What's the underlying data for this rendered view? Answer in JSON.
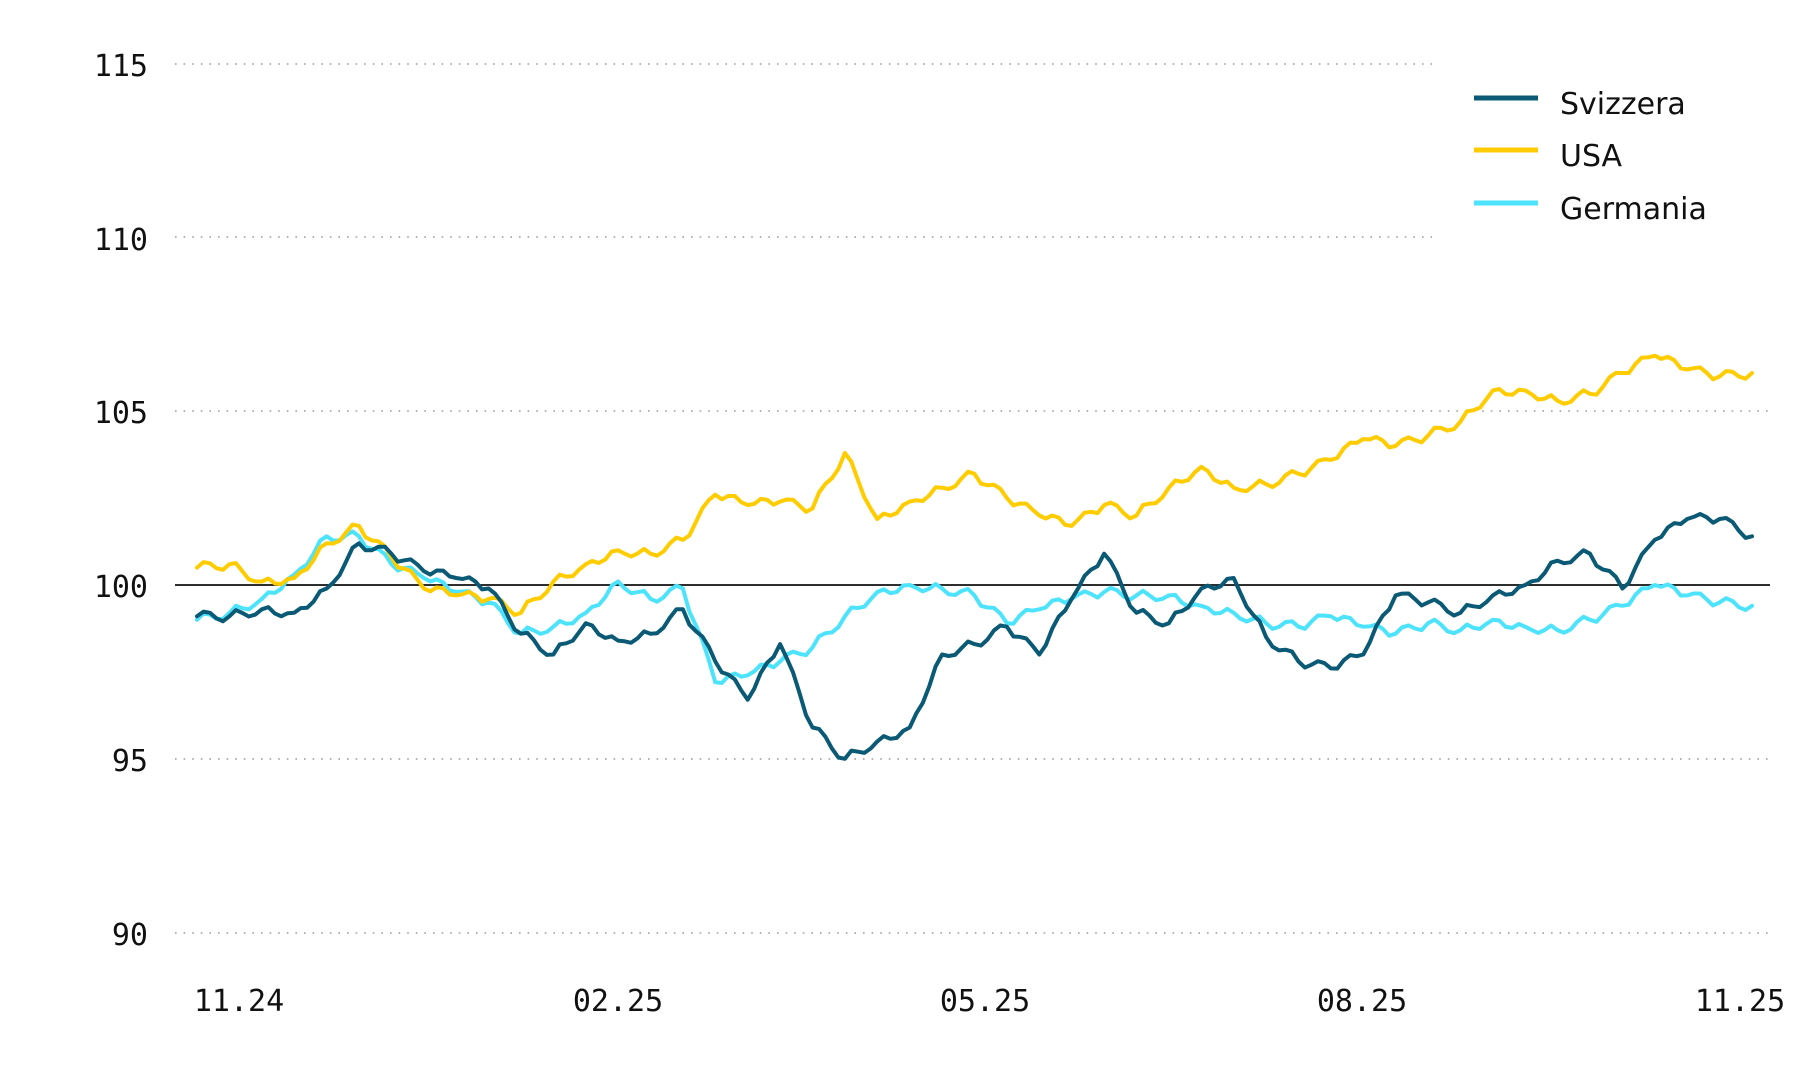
{
  "chart_data": {
    "type": "line",
    "title": "",
    "xlabel": "",
    "ylabel": "",
    "ylim": [
      90,
      115
    ],
    "yticks": [
      115,
      110,
      105,
      100,
      95,
      90
    ],
    "xtick_labels": [
      "11.24",
      "02.25",
      "05.25",
      "08.25",
      "11.25"
    ],
    "grid": "horizontal dotted",
    "reference_line": 100,
    "legend_position": "top-right",
    "x": [
      "11.24",
      "",
      "",
      "",
      "12.24",
      "",
      "",
      "",
      "01.25",
      "",
      "",
      "",
      "02.25",
      "",
      "",
      "",
      "03.25",
      "",
      "",
      "",
      "04.25",
      "",
      "",
      "",
      "05.25",
      "",
      "",
      "",
      "06.25",
      "",
      "",
      "",
      "07.25",
      "",
      "",
      "",
      "08.25",
      "",
      "",
      "",
      "09.25",
      "",
      "",
      "",
      "10.25",
      "",
      "",
      "",
      "11.25"
    ],
    "series": [
      {
        "name": "Svizzera",
        "color": "#0B5A75",
        "values": [
          99.1,
          99.1,
          99.3,
          99.2,
          99.9,
          101.2,
          100.9,
          100.4,
          100.2,
          99.9,
          98.6,
          98.0,
          98.9,
          98.4,
          98.6,
          99.3,
          97.8,
          96.7,
          98.3,
          95.9,
          95.0,
          95.5,
          95.9,
          98.0,
          98.3,
          98.8,
          98.0,
          99.6,
          100.9,
          99.2,
          98.9,
          99.9,
          100.2,
          98.5,
          97.8,
          97.6,
          98.0,
          99.7,
          99.5,
          99.2,
          99.7,
          100.0,
          100.7,
          100.9,
          99.9,
          101.3,
          101.9,
          101.9,
          101.4
        ]
      },
      {
        "name": "USA",
        "color": "#FFCC00",
        "values": [
          100.5,
          100.6,
          100.1,
          100.2,
          101.2,
          101.7,
          100.8,
          99.9,
          99.7,
          99.6,
          99.2,
          100.1,
          100.6,
          101.0,
          100.9,
          101.3,
          102.6,
          102.3,
          102.4,
          102.2,
          103.8,
          101.9,
          102.4,
          102.8,
          103.2,
          102.5,
          102.0,
          101.7,
          102.3,
          102.0,
          102.8,
          103.4,
          102.8,
          102.9,
          103.2,
          103.6,
          104.2,
          104.0,
          104.3,
          104.7,
          105.6,
          105.6,
          105.3,
          105.5,
          106.1,
          106.6,
          106.2,
          106.0,
          106.1
        ]
      },
      {
        "name": "Germania",
        "color": "#4DE3FC",
        "values": [
          99.0,
          99.2,
          99.6,
          100.3,
          101.4,
          101.4,
          100.6,
          100.2,
          99.8,
          99.5,
          98.6,
          98.8,
          99.2,
          100.1,
          99.6,
          99.9,
          97.2,
          97.4,
          97.8,
          98.2,
          99.1,
          99.8,
          100.0,
          99.9,
          99.7,
          98.9,
          99.3,
          99.6,
          99.8,
          99.7,
          99.7,
          99.4,
          99.2,
          98.9,
          98.8,
          99.1,
          98.8,
          98.6,
          98.9,
          98.7,
          99.0,
          98.8,
          98.7,
          99.0,
          99.4,
          100.0,
          99.7,
          99.5,
          99.4
        ]
      }
    ]
  },
  "axis": {
    "y_labels": [
      "115",
      "110",
      "105",
      "100",
      "95",
      "90"
    ],
    "x_labels": [
      "11.24",
      "02.25",
      "05.25",
      "08.25",
      "11.25"
    ]
  },
  "legend": {
    "items": [
      {
        "label": "Svizzera",
        "color": "#0B5A75"
      },
      {
        "label": "USA",
        "color": "#FFCC00"
      },
      {
        "label": "Germania",
        "color": "#4DE3FC"
      }
    ]
  }
}
